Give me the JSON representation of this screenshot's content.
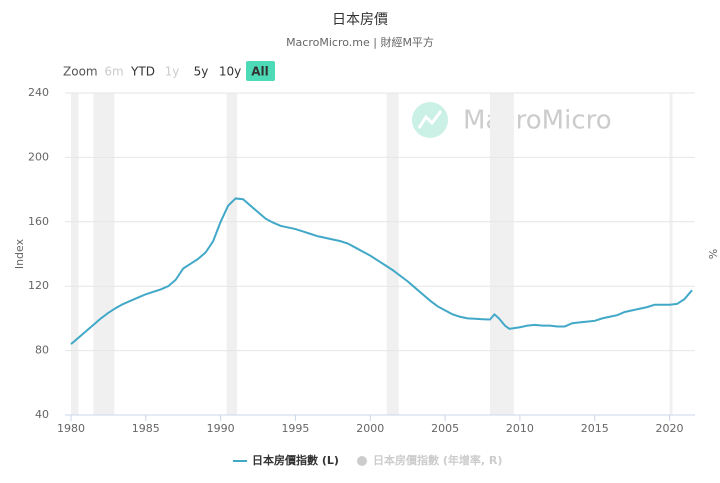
{
  "chart_data": {
    "type": "line",
    "title": "日本房價",
    "subtitle": "MacroMicro.me | 財經M平方",
    "watermark": "MacroMicro",
    "range_selector": {
      "label": "Zoom",
      "buttons": [
        {
          "label": "6m",
          "state": "disabled"
        },
        {
          "label": "YTD",
          "state": "normal"
        },
        {
          "label": "1y",
          "state": "disabled"
        },
        {
          "label": "5y",
          "state": "normal"
        },
        {
          "label": "10y",
          "state": "normal"
        },
        {
          "label": "All",
          "state": "active"
        }
      ]
    },
    "y_label": "Index",
    "y2_label": "%",
    "xlim": [
      1979.6,
      2021.7
    ],
    "xticks": [
      1980,
      1985,
      1990,
      1995,
      2000,
      2005,
      2010,
      2015,
      2020
    ],
    "ylim": [
      40,
      240
    ],
    "yticks": [
      40,
      80,
      120,
      160,
      200,
      240
    ],
    "grid": true,
    "shaded_periods": [
      [
        1980.0,
        1980.5
      ],
      [
        1981.5,
        1982.9
      ],
      [
        1990.4,
        1991.1
      ],
      [
        2001.1,
        2001.9
      ],
      [
        2008.0,
        2009.6
      ],
      [
        2020.0,
        2020.2
      ]
    ],
    "x": [
      1980,
      1980.5,
      1981,
      1981.5,
      1982,
      1982.5,
      1983,
      1983.5,
      1984,
      1984.5,
      1985,
      1985.5,
      1986,
      1986.5,
      1987,
      1987.5,
      1988,
      1988.5,
      1989,
      1989.5,
      1990,
      1990.5,
      1991,
      1991.5,
      1992,
      1992.5,
      1993,
      1993.5,
      1994,
      1994.5,
      1995,
      1995.5,
      1996,
      1996.5,
      1997,
      1997.5,
      1998,
      1998.5,
      1999,
      1999.5,
      2000,
      2000.5,
      2001,
      2001.5,
      2002,
      2002.5,
      2003,
      2003.5,
      2004,
      2004.5,
      2005,
      2005.5,
      2006,
      2006.5,
      2007,
      2007.5,
      2008,
      2008.3,
      2008.6,
      2009,
      2009.3,
      2010,
      2010.5,
      2011,
      2011.5,
      2012,
      2012.5,
      2013,
      2013.5,
      2014,
      2014.5,
      2015,
      2015.5,
      2016,
      2016.5,
      2017,
      2017.5,
      2018,
      2018.5,
      2019,
      2019.5,
      2020,
      2020.5,
      2021,
      2021.5
    ],
    "series": [
      {
        "name": "日本房價指數 (L)",
        "color": "#41a8c8",
        "values": [
          84,
          88,
          92,
          96,
          100,
          103.5,
          106.5,
          109,
          111,
          113,
          115,
          116.5,
          118,
          120,
          124,
          131,
          134,
          137,
          141,
          148,
          160,
          170,
          174.5,
          174,
          170,
          166,
          162,
          159.5,
          157.5,
          156.5,
          155.5,
          154,
          152.5,
          151,
          150,
          149,
          148,
          146.5,
          144,
          141.5,
          139,
          136,
          133,
          130,
          126.5,
          123,
          119,
          115,
          111,
          107.5,
          105,
          102.5,
          101,
          100,
          99.8,
          99.5,
          99.3,
          102.5,
          100,
          95.5,
          93.5,
          94.5,
          95.5,
          96,
          95.5,
          95.5,
          95,
          95,
          97,
          97.5,
          98,
          98.5,
          100,
          101,
          102,
          104,
          105,
          106,
          107,
          108.5,
          108.5,
          108.5,
          109,
          112,
          117.5
        ]
      }
    ],
    "hidden_series": [
      {
        "name": "日本房價指數 (年增率, R)",
        "color": "#cccccc"
      }
    ]
  }
}
